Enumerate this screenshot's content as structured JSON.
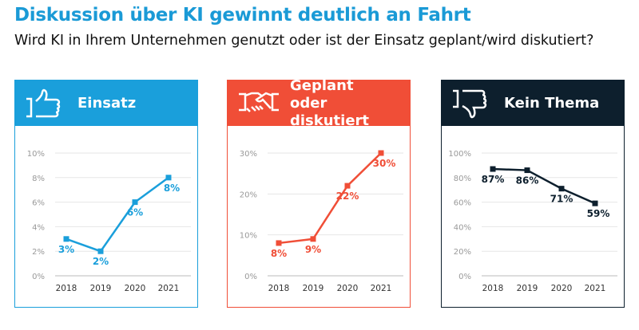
{
  "title": "Diskussion über KI gewinnt deutlich an Fahrt",
  "subtitle": "Wird KI in Ihrem Unternehmen genutzt oder ist der Einsatz geplant/wird diskutiert?",
  "chart_data": [
    {
      "type": "line",
      "title": "Einsatz",
      "icon": "thumbs-up-icon",
      "color": "#1a9fdb",
      "categories": [
        "2018",
        "2019",
        "2020",
        "2021"
      ],
      "values": [
        3,
        2,
        6,
        8
      ],
      "data_labels": [
        "3%",
        "2%",
        "6%",
        "8%"
      ],
      "ylim": [
        0,
        10
      ],
      "yticks": [
        "0%",
        "2%",
        "4%",
        "6%",
        "8%",
        "10%"
      ],
      "ytick_values": [
        0,
        2,
        4,
        6,
        8,
        10
      ],
      "grid": true
    },
    {
      "type": "line",
      "title": "Geplant oder diskutiert",
      "icon": "handshake-icon",
      "color": "#f04e37",
      "categories": [
        "2018",
        "2019",
        "2020",
        "2021"
      ],
      "values": [
        8,
        9,
        22,
        30
      ],
      "data_labels": [
        "8%",
        "9%",
        "22%",
        "30%"
      ],
      "ylim": [
        0,
        30
      ],
      "yticks": [
        "0%",
        "10%",
        "20%",
        "30%"
      ],
      "ytick_values": [
        0,
        10,
        20,
        30
      ],
      "grid": true
    },
    {
      "type": "line",
      "title": "Kein Thema",
      "icon": "thumbs-down-icon",
      "color": "#0d1f2d",
      "categories": [
        "2018",
        "2019",
        "2020",
        "2021"
      ],
      "values": [
        87,
        86,
        71,
        59
      ],
      "data_labels": [
        "87%",
        "86%",
        "71%",
        "59%"
      ],
      "ylim": [
        0,
        100
      ],
      "yticks": [
        "0%",
        "20%",
        "40%",
        "60%",
        "80%",
        "100%"
      ],
      "ytick_values": [
        0,
        20,
        40,
        60,
        80,
        100
      ],
      "grid": true
    }
  ]
}
